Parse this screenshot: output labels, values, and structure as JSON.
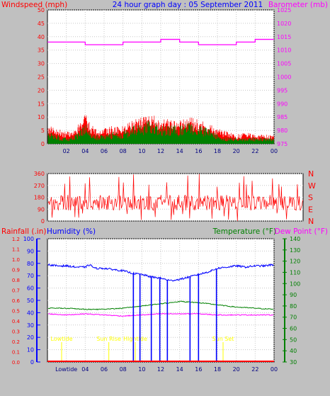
{
  "header": {
    "left_label": "Windspeed (mph)",
    "title": "24 hour graph day : 05 September 2011",
    "right_label": "Barometer (mb)"
  },
  "panel3_labels": {
    "rainfall": "Rainfall (.in)",
    "humidity": "Humidity (%)",
    "temperature": "Temperature (°F)",
    "dew_point": "Dew Point (°F)"
  },
  "colors": {
    "background": "#c0c0c0",
    "plot_bg": "#ffffff",
    "windspeed_gust": "#ff0000",
    "windspeed_avg": "#008000",
    "barometer": "#ff00ff",
    "direction": "#ff0000",
    "humidity": "#0000ff",
    "temperature": "#008000",
    "dew_point": "#ff00ff",
    "rainfall": "#ff0000",
    "tide_sun_labels": "#ffff00"
  },
  "chart_data": [
    {
      "id": "wind_baro",
      "type": "line",
      "title": "24 hour graph day : 05 September 2011",
      "x_ticks": [
        "02",
        "04",
        "06",
        "08",
        "10",
        "12",
        "14",
        "16",
        "18",
        "20",
        "22",
        "00"
      ],
      "x_range_hours": [
        0,
        24
      ],
      "left_axis": {
        "label": "Windspeed (mph)",
        "ticks": [
          0,
          5,
          10,
          15,
          20,
          25,
          30,
          35,
          40,
          45,
          50
        ],
        "range": [
          0,
          50
        ]
      },
      "right_axis": {
        "label": "Barometer (mb)",
        "ticks": [
          975,
          980,
          985,
          990,
          995,
          1000,
          1005,
          1010,
          1015,
          1020,
          1025
        ],
        "range": [
          975,
          1025
        ]
      },
      "series": [
        {
          "axis": "right",
          "color": "#ff00ff",
          "step": true,
          "x": [
            0,
            2,
            4,
            6,
            8,
            10,
            12,
            14,
            16,
            18,
            20,
            22,
            24
          ],
          "y": [
            1013,
            1013,
            1012,
            1012,
            1013,
            1013,
            1014,
            1013,
            1012,
            1012,
            1013,
            1014,
            1014
          ]
        }
      ],
      "wind_gust_envelope": {
        "color": "#ff0000",
        "x": [
          0,
          1,
          2,
          3,
          3.5,
          4,
          4.5,
          5,
          6,
          7,
          8,
          9,
          10,
          11,
          12,
          13,
          14,
          15,
          16,
          17,
          18,
          19,
          20,
          21,
          22,
          23,
          24
        ],
        "y": [
          6,
          5,
          4,
          5,
          8,
          10,
          7,
          5,
          5,
          6,
          6,
          8,
          9,
          10,
          8,
          8,
          8,
          9,
          8,
          7,
          5,
          4,
          3,
          4,
          3,
          3,
          3
        ]
      },
      "wind_avg_envelope": {
        "color": "#008000",
        "x": [
          0,
          1,
          2,
          3,
          3.5,
          4,
          4.5,
          5,
          6,
          7,
          8,
          9,
          10,
          11,
          12,
          13,
          14,
          15,
          16,
          17,
          18,
          19,
          20,
          21,
          22,
          23,
          24
        ],
        "y": [
          4,
          3,
          2,
          3,
          5,
          7,
          5,
          3,
          3,
          4,
          4,
          6,
          7,
          8,
          6,
          6,
          6,
          7,
          6,
          5,
          3,
          2,
          2,
          2,
          2,
          2,
          2
        ]
      }
    },
    {
      "id": "direction",
      "type": "line",
      "x_range_hours": [
        0,
        24
      ],
      "y_axis": {
        "ticks": [
          0,
          90,
          180,
          270,
          360
        ],
        "range": [
          0,
          360
        ]
      },
      "right_labels": [
        "N",
        "W",
        "S",
        "E",
        "N"
      ],
      "series": [
        {
          "color": "#ff0000",
          "typical_band": [
            80,
            200
          ],
          "extremes": [
            0,
            360
          ]
        }
      ]
    },
    {
      "id": "hum_temp_rain",
      "type": "line",
      "x_ticks": [
        "Lowtide",
        "04",
        "06",
        "08",
        "10",
        "12",
        "14",
        "16",
        "18",
        "20",
        "22",
        "00"
      ],
      "x_range_hours": [
        0,
        24
      ],
      "rain_axis": {
        "label": "Rainfall (.in)",
        "ticks": [
          0,
          0.1,
          0.2,
          0.3,
          0.4,
          0.5,
          0.6,
          0.7,
          0.8,
          0.9,
          1.0,
          1.1,
          1.2
        ],
        "range": [
          0,
          1.2
        ]
      },
      "humidity_axis": {
        "label": "Humidity (%)",
        "ticks": [
          0,
          10,
          20,
          30,
          40,
          50,
          60,
          70,
          80,
          90,
          100
        ],
        "range": [
          0,
          100
        ]
      },
      "temp_axis": {
        "label": "Temperature (°F)",
        "ticks": [
          30,
          40,
          50,
          60,
          70,
          80,
          90,
          100,
          110,
          120,
          130,
          140
        ],
        "range": [
          30,
          140
        ]
      },
      "dew_axis": {
        "label": "Dew Point (°F)"
      },
      "series": [
        {
          "name": "Humidity",
          "axis": "humidity",
          "color": "#0000ff",
          "x": [
            0,
            1,
            2,
            3,
            4,
            4.5,
            5,
            6,
            7,
            8,
            9,
            10,
            11,
            12,
            13,
            14,
            15,
            16,
            17,
            18,
            19,
            20,
            21,
            22,
            23,
            24
          ],
          "y": [
            79,
            78,
            78,
            77,
            77,
            79,
            76,
            76,
            75,
            74,
            72,
            71,
            69,
            68,
            66,
            67,
            69,
            71,
            73,
            76,
            77,
            78,
            77,
            78,
            78,
            79
          ]
        },
        {
          "name": "Temperature",
          "axis": "temp",
          "color": "#008000",
          "x": [
            0,
            2,
            4,
            6,
            8,
            10,
            12,
            14,
            16,
            18,
            20,
            22,
            24
          ],
          "y": [
            78,
            78,
            77,
            77,
            78,
            80,
            82,
            84,
            83,
            81,
            79,
            78,
            77
          ]
        },
        {
          "name": "Dew Point",
          "axis": "temp",
          "color": "#ff00ff",
          "x": [
            0,
            2,
            4,
            6,
            8,
            10,
            12,
            14,
            16,
            18,
            20,
            22,
            24
          ],
          "y": [
            73,
            72,
            73,
            72,
            71,
            72,
            73,
            73,
            73,
            72,
            72,
            72,
            72
          ]
        }
      ],
      "humidity_drops": {
        "x": [
          9.1,
          9.8,
          11.0,
          11.9,
          12.7,
          15.1,
          16.0,
          17.9
        ],
        "min": 0
      },
      "rain_total": 0,
      "event_markers": [
        {
          "label": "Lowtide",
          "x": 1.5
        },
        {
          "label": "Sun Rise",
          "x": 6.5
        },
        {
          "label": "Hightide",
          "x": 9.3
        },
        {
          "label": "Sun Set",
          "x": 18.6
        }
      ]
    }
  ]
}
